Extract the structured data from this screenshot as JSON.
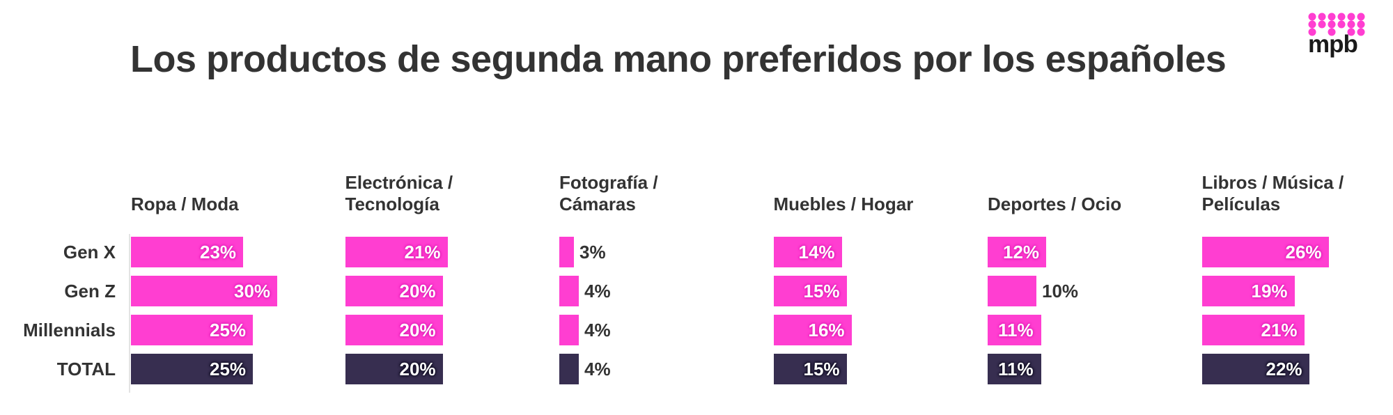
{
  "title": "Los productos de segunda mano preferidos por los españoles",
  "logo": {
    "text": "mpb",
    "color": "#ff3ed1"
  },
  "colors": {
    "segment": "#ff3ed1",
    "total": "#372e50"
  },
  "chart_data": {
    "type": "bar",
    "orientation": "horizontal",
    "rows": [
      "Gen X",
      "Gen Z",
      "Millennials",
      "TOTAL"
    ],
    "panels": [
      {
        "name": "Ropa / Moda",
        "values": [
          23,
          30,
          25,
          25
        ]
      },
      {
        "name": "Electrónica /\nTecnología",
        "values": [
          21,
          20,
          20,
          20
        ]
      },
      {
        "name": "Fotografía /\nCámaras",
        "values": [
          3,
          4,
          4,
          4
        ]
      },
      {
        "name": "Muebles / Hogar",
        "values": [
          14,
          15,
          16,
          15
        ]
      },
      {
        "name": "Deportes / Ocio",
        "values": [
          12,
          10,
          11,
          11
        ]
      },
      {
        "name": "Libros / Música /\nPelículas",
        "values": [
          26,
          19,
          21,
          22
        ]
      }
    ],
    "unit": "%"
  }
}
